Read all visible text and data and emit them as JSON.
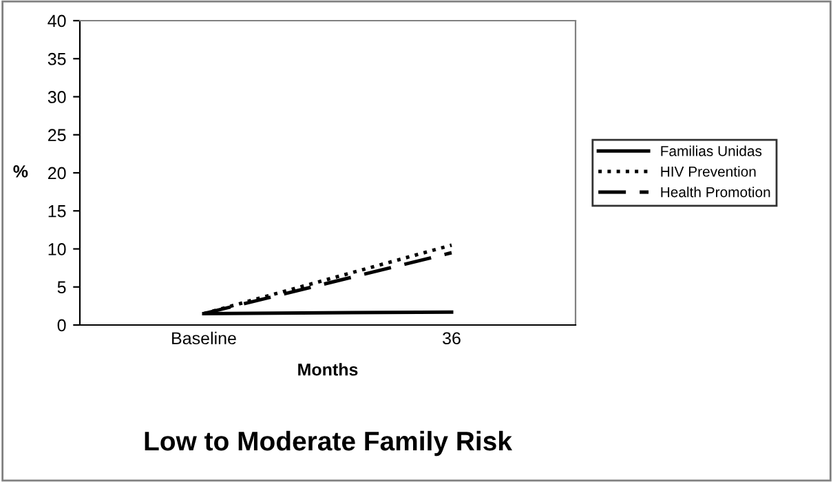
{
  "chart_data": {
    "type": "line",
    "title": "Low to Moderate Family Risk",
    "xlabel": "Months",
    "ylabel": "%",
    "categories": [
      "Baseline",
      "36"
    ],
    "series": [
      {
        "name": "Familias Unidas",
        "color": "#000000",
        "line_style": "solid",
        "values": [
          1.5,
          1.7
        ]
      },
      {
        "name": "HIV Prevention",
        "color": "#000000",
        "line_style": "dotted",
        "values": [
          1.5,
          10.5
        ]
      },
      {
        "name": "Health Promotion",
        "color": "#000000",
        "line_style": "dashed",
        "values": [
          1.5,
          9.5
        ]
      }
    ],
    "ylim": [
      0,
      40
    ],
    "yticks": [
      0,
      5,
      10,
      15,
      20,
      25,
      30,
      35,
      40
    ],
    "grid": false,
    "legend": "right",
    "marker": "none"
  }
}
